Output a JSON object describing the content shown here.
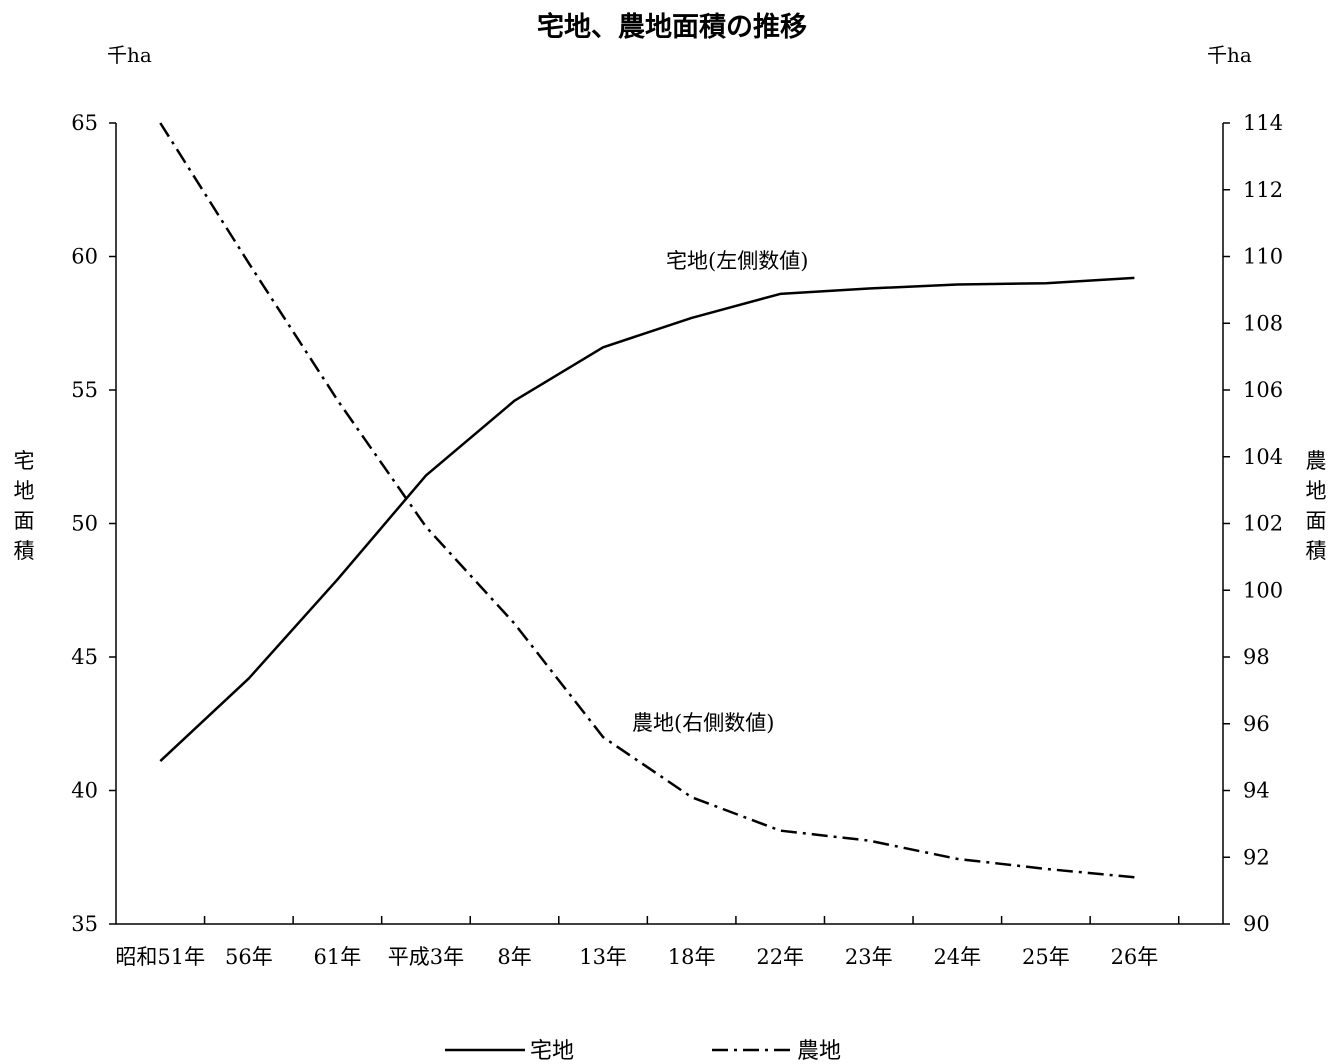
{
  "chart_data": {
    "type": "line",
    "title": "宅地、農地面積の推移",
    "categories": [
      "昭和51年",
      "56年",
      "61年",
      "平成3年",
      "8年",
      "13年",
      "18年",
      "22年",
      "23年",
      "24年",
      "25年",
      "26年"
    ],
    "y_left": {
      "unit": "千ha",
      "label": "宅地面積",
      "ylim": [
        35,
        65
      ],
      "ticks": [
        "35",
        "40",
        "45",
        "50",
        "55",
        "60",
        "65"
      ]
    },
    "y_right": {
      "unit": "千ha",
      "label": "農地面積",
      "ylim": [
        90,
        114
      ],
      "ticks": [
        "90",
        "92",
        "94",
        "96",
        "98",
        "100",
        "102",
        "104",
        "106",
        "108",
        "110",
        "112",
        "114"
      ]
    },
    "series": [
      {
        "name": "宅地",
        "axis": "left",
        "style": "solid",
        "values": [
          41.1,
          44.2,
          47.9,
          51.8,
          54.6,
          56.6,
          57.7,
          58.6,
          58.8,
          58.95,
          59.0,
          59.2
        ]
      },
      {
        "name": "農地",
        "axis": "right",
        "style": "dash-dot",
        "values": [
          114.0,
          109.8,
          105.7,
          101.9,
          99.0,
          95.6,
          93.8,
          92.8,
          92.5,
          91.95,
          91.65,
          91.4
        ]
      }
    ],
    "annotations": [
      "宅地(左側数値)",
      "農地(右側数値)"
    ],
    "legend": {
      "position": "bottom-center",
      "items": [
        "宅地",
        "農地"
      ]
    },
    "grid": false,
    "line_color": "#000000"
  }
}
